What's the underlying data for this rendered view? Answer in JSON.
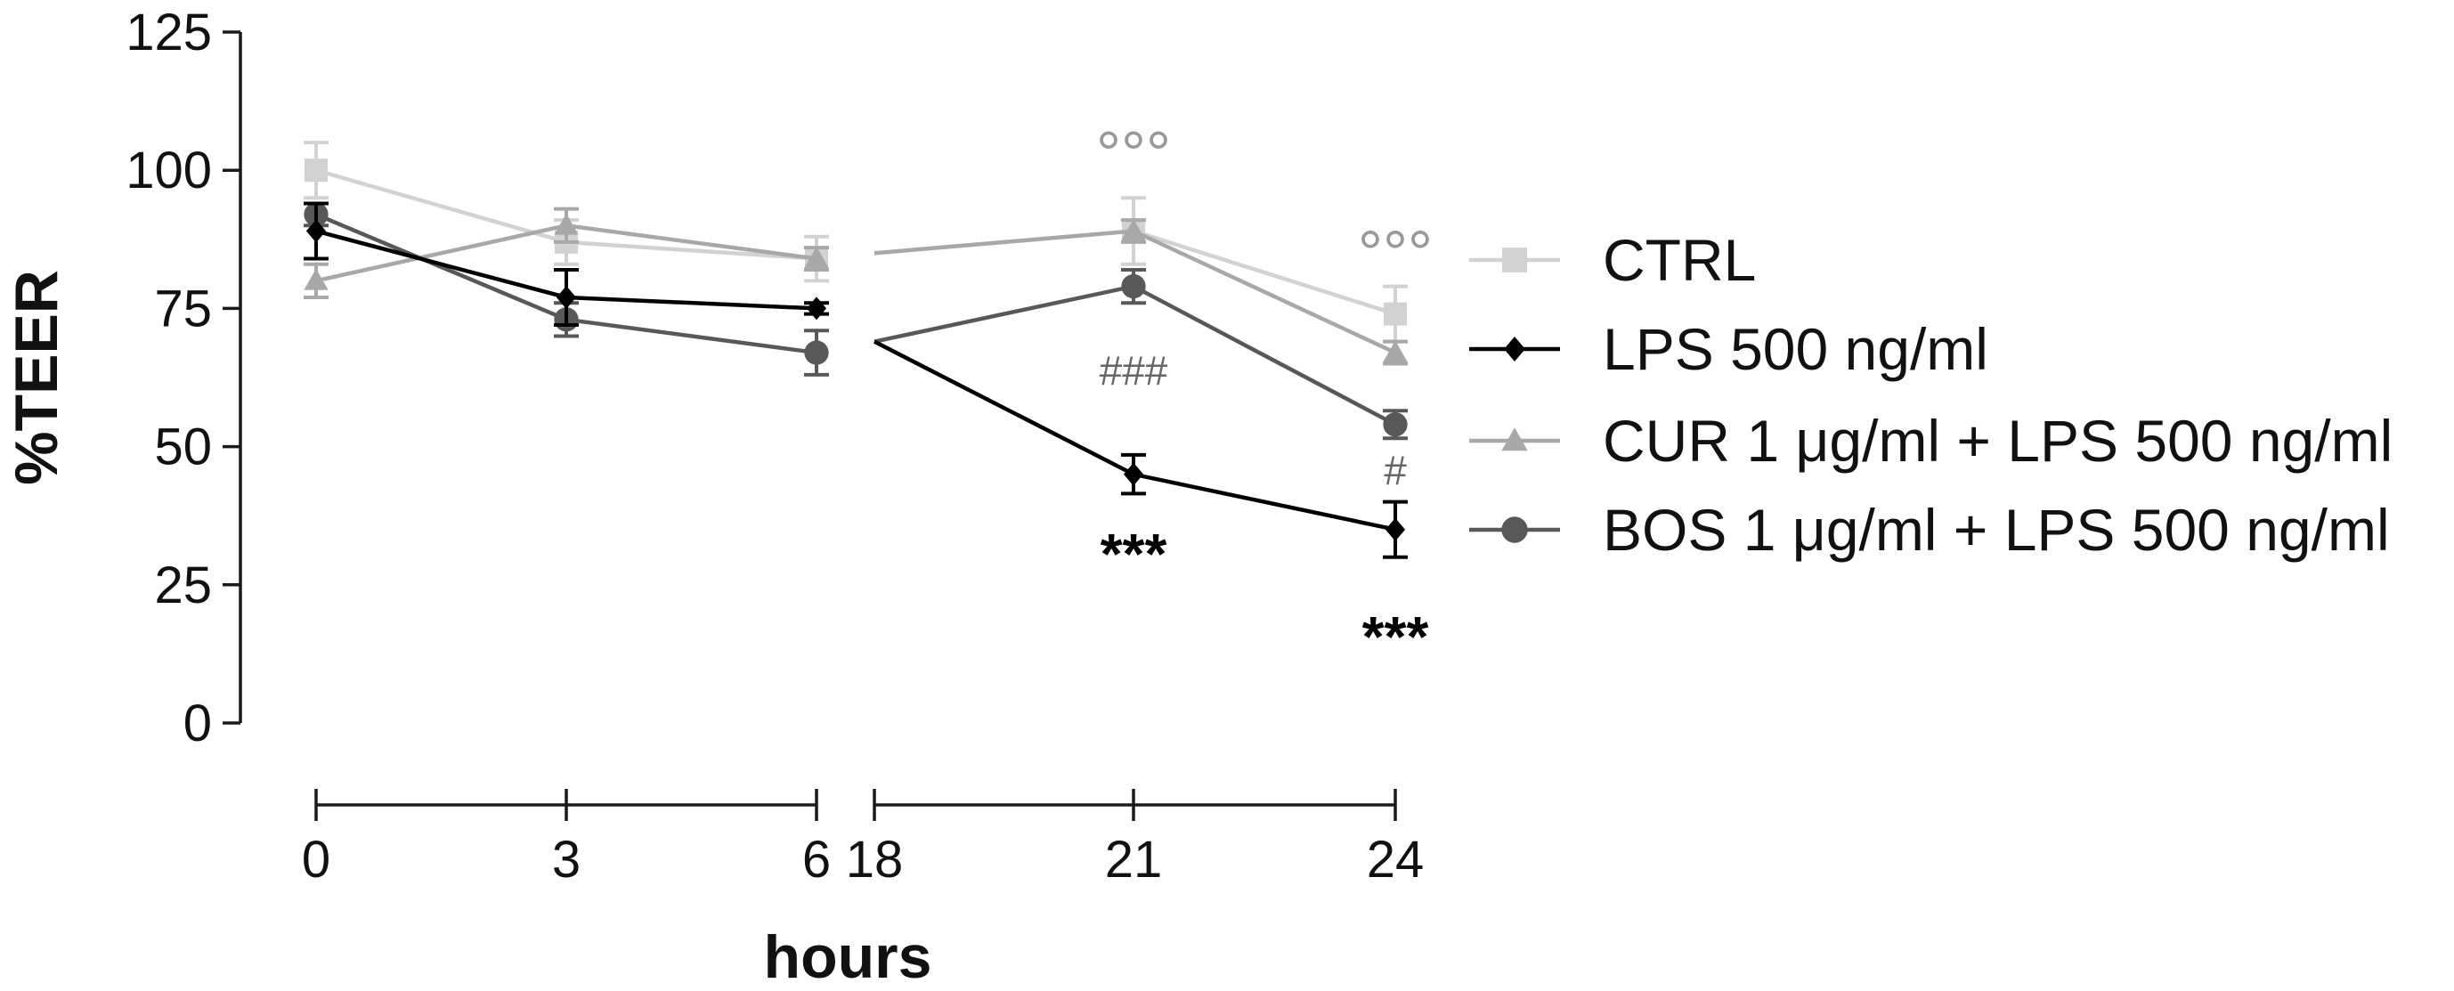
{
  "chart_data": {
    "type": "line",
    "ylabel": "%TEER",
    "xlabel": "hours",
    "ylim": [
      0,
      125
    ],
    "yticks": [
      "0",
      "25",
      "50",
      "75",
      "100",
      "125"
    ],
    "xticks": [
      "0",
      "3",
      "6",
      "18",
      "21",
      "24"
    ],
    "x_segments": [
      {
        "range": [
          0,
          6
        ],
        "ticks": [
          "0",
          "3",
          "6"
        ]
      },
      {
        "range": [
          18,
          24
        ],
        "ticks": [
          "18",
          "21",
          "24"
        ]
      }
    ],
    "grid": false,
    "legend_position": "right",
    "series": [
      {
        "name": "CTRL",
        "color": "#d2d2d2",
        "marker": "square",
        "points": [
          {
            "x": 0,
            "y": 100,
            "err": 5
          },
          {
            "x": 3,
            "y": 87,
            "err": 4
          },
          {
            "x": 6,
            "y": 84,
            "err": 4
          },
          {
            "x": 18,
            "y": 85
          },
          {
            "x": 21,
            "y": 89,
            "err": 6
          },
          {
            "x": 24,
            "y": 74,
            "err": 5
          }
        ]
      },
      {
        "name": "LPS 500 ng/ml",
        "color": "#000000",
        "marker": "diamond",
        "points": [
          {
            "x": 0,
            "y": 89,
            "err": 5
          },
          {
            "x": 3,
            "y": 77,
            "err": 5
          },
          {
            "x": 6,
            "y": 75,
            "err": 1
          },
          {
            "x": 18,
            "y": 69
          },
          {
            "x": 21,
            "y": 45,
            "err": 3.5
          },
          {
            "x": 24,
            "y": 35,
            "err": 5
          }
        ]
      },
      {
        "name": "CUR 1 μg/ml + LPS 500 ng/ml",
        "color": "#a8a8a8",
        "marker": "triangle",
        "points": [
          {
            "x": 0,
            "y": 80,
            "err": 3
          },
          {
            "x": 3,
            "y": 90,
            "err": 3
          },
          {
            "x": 6,
            "y": 84,
            "err": 2
          },
          {
            "x": 18,
            "y": 85
          },
          {
            "x": 21,
            "y": 89,
            "err": 2
          },
          {
            "x": 24,
            "y": 67,
            "err": 2
          }
        ]
      },
      {
        "name": "BOS 1 μg/ml + LPS 500 ng/ml",
        "color": "#585858",
        "marker": "circle",
        "points": [
          {
            "x": 0,
            "y": 92,
            "err": 2
          },
          {
            "x": 3,
            "y": 73,
            "err": 3
          },
          {
            "x": 6,
            "y": 67,
            "err": 4
          },
          {
            "x": 18,
            "y": 69
          },
          {
            "x": 21,
            "y": 79,
            "err": 3
          },
          {
            "x": 24,
            "y": 54,
            "err": 2.5
          }
        ]
      }
    ],
    "annotations": [
      {
        "text": "°°°",
        "x": 21,
        "y": 104,
        "color": "#999999"
      },
      {
        "text": "°°°",
        "x": 24,
        "y": 86,
        "color": "#999999"
      },
      {
        "text": "###",
        "x": 21,
        "y": 64,
        "color": "#666666"
      },
      {
        "text": "#",
        "x": 24,
        "y": 46,
        "color": "#666666"
      },
      {
        "text": "***",
        "x": 21,
        "y": 30,
        "color": "#000000"
      },
      {
        "text": "***",
        "x": 24,
        "y": 15,
        "color": "#000000"
      }
    ]
  }
}
